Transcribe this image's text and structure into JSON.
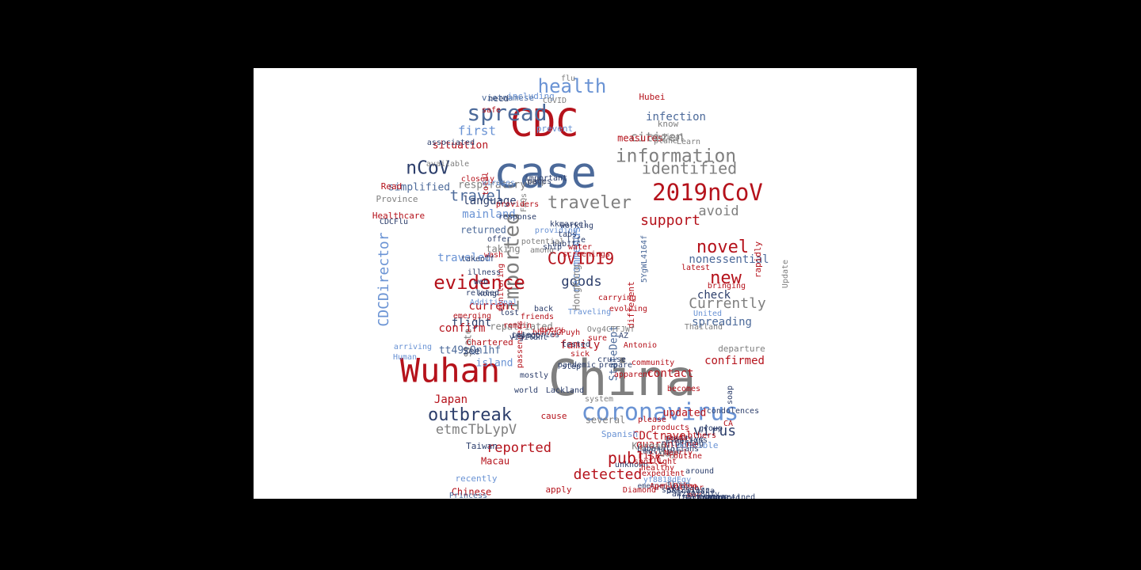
{
  "palette": {
    "red": "#b5121b",
    "gray": "#7f7f7f",
    "navy": "#2c3e6b",
    "slate": "#4c6a9a",
    "sky": "#6a93d4"
  },
  "words": [
    {
      "t": "China",
      "c": "gray"
    },
    {
      "t": "case",
      "c": "slate"
    },
    {
      "t": "CDC",
      "c": "red"
    },
    {
      "t": "Wuhan",
      "c": "red"
    },
    {
      "t": "coronavirus",
      "c": "sky"
    },
    {
      "t": "2019nCoV",
      "c": "red"
    },
    {
      "t": "spread",
      "c": "slate"
    },
    {
      "t": "health",
      "c": "sky"
    },
    {
      "t": "information",
      "c": "gray"
    },
    {
      "t": "nCoV",
      "c": "navy"
    },
    {
      "t": "outbreak",
      "c": "navy"
    },
    {
      "t": "traveler",
      "c": "gray"
    },
    {
      "t": "identified",
      "c": "gray"
    },
    {
      "t": "imported",
      "c": "gray"
    },
    {
      "t": "evidence",
      "c": "red"
    },
    {
      "t": "new",
      "c": "red"
    },
    {
      "t": "novel",
      "c": "red"
    },
    {
      "t": "travel",
      "c": "slate"
    },
    {
      "t": "public",
      "c": "red"
    },
    {
      "t": "detected",
      "c": "red"
    },
    {
      "t": "Currently",
      "c": "gray"
    },
    {
      "t": "support",
      "c": "red"
    },
    {
      "t": "virus",
      "c": "navy"
    },
    {
      "t": "COVID19",
      "c": "red"
    },
    {
      "t": "goods",
      "c": "navy"
    },
    {
      "t": "first",
      "c": "sky"
    },
    {
      "t": "CDCDirector",
      "c": "sky"
    },
    {
      "t": "etmcTbLypV",
      "c": "gray"
    },
    {
      "t": "reported",
      "c": "red"
    },
    {
      "t": "avoid",
      "c": "gray"
    },
    {
      "t": "nonessential",
      "c": "slate"
    },
    {
      "t": "recommends",
      "c": "sky"
    },
    {
      "t": "flight",
      "c": "navy"
    },
    {
      "t": "respiratory",
      "c": "gray"
    },
    {
      "t": "citizen",
      "c": "gray"
    },
    {
      "t": "language",
      "c": "navy"
    },
    {
      "t": "mainland",
      "c": "sky"
    },
    {
      "t": "traveled",
      "c": "sky"
    },
    {
      "t": "current",
      "c": "red"
    },
    {
      "t": "confirm",
      "c": "red"
    },
    {
      "t": "spreading",
      "c": "slate"
    },
    {
      "t": "confirmed",
      "c": "red"
    },
    {
      "t": "family",
      "c": "red"
    },
    {
      "t": "check",
      "c": "navy"
    },
    {
      "t": "CDCtravel",
      "c": "red"
    },
    {
      "t": "HongKong",
      "c": "gray"
    },
    {
      "t": "StateDept",
      "c": "slate"
    },
    {
      "t": "contact",
      "c": "red"
    },
    {
      "t": "quarantine",
      "c": "red"
    },
    {
      "t": "updated",
      "c": "red"
    },
    {
      "t": "measures",
      "c": "red"
    },
    {
      "t": "situation",
      "c": "red"
    },
    {
      "t": "simplified",
      "c": "slate"
    },
    {
      "t": "infection",
      "c": "slate"
    },
    {
      "t": "Japan",
      "c": "red"
    },
    {
      "t": "island",
      "c": "sky"
    },
    {
      "t": "tt49zQn1hf",
      "c": "slate"
    },
    {
      "t": "State",
      "c": "gray"
    },
    {
      "t": "returned",
      "c": "slate"
    },
    {
      "t": "taking",
      "c": "gray"
    },
    {
      "t": "repatriated",
      "c": "gray"
    },
    {
      "t": "See",
      "c": "navy"
    },
    {
      "t": "Korean",
      "c": "gray"
    },
    {
      "t": "risk",
      "c": "red"
    },
    {
      "t": "Macau",
      "c": "red"
    },
    {
      "t": "Taiwan",
      "c": "navy"
    },
    {
      "t": "Chinese",
      "c": "red"
    },
    {
      "t": "recently",
      "c": "sky"
    },
    {
      "t": "several",
      "c": "gray"
    },
    {
      "t": "Spanish",
      "c": "sky"
    },
    {
      "t": "day",
      "c": "gray"
    },
    {
      "t": "apply",
      "c": "red"
    },
    {
      "t": "cause",
      "c": "red"
    },
    {
      "t": "possible",
      "c": "sky"
    },
    {
      "t": "different",
      "c": "red"
    },
    {
      "t": "5YgWL4164f",
      "c": "slate"
    },
    {
      "t": "back",
      "c": "navy"
    },
    {
      "t": "safe",
      "c": "red"
    },
    {
      "t": "need",
      "c": "navy"
    },
    {
      "t": "vietnamese",
      "c": "slate"
    },
    {
      "t": "including",
      "c": "sky"
    },
    {
      "t": "Hubei",
      "c": "red"
    },
    {
      "t": "flu",
      "c": "gray"
    },
    {
      "t": "COVID",
      "c": "gray"
    },
    {
      "t": "prevent",
      "c": "sky"
    },
    {
      "t": "Learn",
      "c": "gray"
    },
    {
      "t": "plane",
      "c": "gray"
    },
    {
      "t": "medical",
      "c": "gray"
    },
    {
      "t": "know",
      "c": "gray"
    },
    {
      "t": "help",
      "c": "gray"
    },
    {
      "t": "closely",
      "c": "red"
    },
    {
      "t": "Province",
      "c": "gray"
    },
    {
      "t": "Healthcare",
      "c": "red"
    },
    {
      "t": "CDCFlu",
      "c": "navy"
    },
    {
      "t": "Read",
      "c": "red"
    },
    {
      "t": "total",
      "c": "red"
    },
    {
      "t": "FAQs",
      "c": "gray"
    },
    {
      "t": "bringing",
      "c": "red"
    },
    {
      "t": "latest",
      "c": "red"
    },
    {
      "t": "rapidly",
      "c": "red"
    },
    {
      "t": "Update",
      "c": "gray"
    },
    {
      "t": "United",
      "c": "sky"
    },
    {
      "t": "Thailand",
      "c": "gray"
    },
    {
      "t": "friends",
      "c": "red"
    },
    {
      "t": "departure",
      "c": "gray"
    },
    {
      "t": "step",
      "c": "navy"
    },
    {
      "t": "Lackland",
      "c": "navy"
    },
    {
      "t": "system",
      "c": "gray"
    },
    {
      "t": "Laboratorians",
      "c": "navy"
    },
    {
      "t": "Diamond",
      "c": "red"
    },
    {
      "t": "Princess",
      "c": "slate"
    },
    {
      "t": "arriving",
      "c": "sky"
    },
    {
      "t": "Human",
      "c": "sky"
    },
    {
      "t": "Chartered",
      "c": "red"
    },
    {
      "t": "passengers",
      "c": "red"
    },
    {
      "t": "monitoring",
      "c": "red"
    },
    {
      "t": "Additional",
      "c": "sky"
    },
    {
      "t": "emerging",
      "c": "red"
    },
    {
      "t": "evolving",
      "c": "red"
    },
    {
      "t": "bbH7gGPuyh",
      "c": "red"
    },
    {
      "t": "Ovg4CTFJWf",
      "c": "gray"
    },
    {
      "t": "AZ",
      "c": "navy"
    },
    {
      "t": "tested",
      "c": "navy"
    },
    {
      "t": "sick",
      "c": "red"
    },
    {
      "t": "pandemic",
      "c": "navy"
    },
    {
      "t": "mostly",
      "c": "navy"
    },
    {
      "t": "world",
      "c": "navy"
    },
    {
      "t": "positive",
      "c": "navy"
    },
    {
      "t": "options",
      "c": "navy"
    },
    {
      "t": "routine",
      "c": "red"
    },
    {
      "t": "multiple",
      "c": "navy"
    },
    {
      "t": "unknown",
      "c": "navy"
    },
    {
      "t": "flown",
      "c": "navy"
    },
    {
      "t": "emergence",
      "c": "navy"
    },
    {
      "t": "becomes",
      "c": "red"
    },
    {
      "t": "others",
      "c": "red"
    },
    {
      "t": "may",
      "c": "red"
    },
    {
      "t": "Nearly",
      "c": "red"
    },
    {
      "t": "group",
      "c": "navy"
    },
    {
      "t": "CA",
      "c": "red"
    },
    {
      "t": "soap",
      "c": "navy"
    },
    {
      "t": "condolences",
      "c": "navy"
    },
    {
      "t": "associated",
      "c": "navy"
    },
    {
      "t": "available",
      "c": "gray"
    },
    {
      "t": "pages",
      "c": "navy"
    },
    {
      "t": "viruses",
      "c": "sky"
    },
    {
      "t": "providers",
      "c": "red"
    },
    {
      "t": "response",
      "c": "navy"
    },
    {
      "t": "important",
      "c": "navy"
    },
    {
      "t": "kkmarcel",
      "c": "navy"
    },
    {
      "t": "working",
      "c": "navy"
    },
    {
      "t": "providing",
      "c": "sky"
    },
    {
      "t": "tabs",
      "c": "navy"
    },
    {
      "t": "life",
      "c": "navy"
    },
    {
      "t": "habits",
      "c": "navy"
    },
    {
      "t": "water",
      "c": "red"
    },
    {
      "t": "screenings",
      "c": "red"
    },
    {
      "t": "potential",
      "c": "gray"
    },
    {
      "t": "among",
      "c": "gray"
    },
    {
      "t": "ship",
      "c": "navy"
    },
    {
      "t": "offer",
      "c": "navy"
    },
    {
      "t": "wash",
      "c": "red"
    },
    {
      "t": "takeoff",
      "c": "navy"
    },
    {
      "t": "illness",
      "c": "navy"
    },
    {
      "t": "web",
      "c": "navy"
    },
    {
      "t": "related",
      "c": "navy"
    },
    {
      "t": "kong",
      "c": "navy"
    },
    {
      "t": "lost",
      "c": "navy"
    },
    {
      "t": "remain",
      "c": "red"
    },
    {
      "t": "impact",
      "c": "navy"
    },
    {
      "t": "vigilant",
      "c": "navy"
    },
    {
      "t": "categories",
      "c": "navy"
    },
    {
      "t": "every",
      "c": "red"
    },
    {
      "t": "carrying",
      "c": "red"
    },
    {
      "t": "Traveling",
      "c": "sky"
    },
    {
      "t": "sure",
      "c": "red"
    },
    {
      "t": "Antonio",
      "c": "red"
    },
    {
      "t": "cruise",
      "c": "navy"
    },
    {
      "t": "prepare",
      "c": "navy"
    },
    {
      "t": "community",
      "c": "red"
    },
    {
      "t": "apparent",
      "c": "red"
    },
    {
      "t": "please",
      "c": "red"
    },
    {
      "t": "products",
      "c": "red"
    },
    {
      "t": "hands",
      "c": "red"
    },
    {
      "t": "returning",
      "c": "navy"
    },
    {
      "t": "around",
      "c": "navy"
    },
    {
      "t": "spotlight",
      "c": "red"
    },
    {
      "t": "healthy",
      "c": "red"
    },
    {
      "t": "expedient",
      "c": "red"
    },
    {
      "t": "yf8818dEgy",
      "c": "sky"
    },
    {
      "t": "AprilDilao",
      "c": "red"
    },
    {
      "t": "rfoV1C73hr",
      "c": "red"
    },
    {
      "t": "spX4Z319xr",
      "c": "navy"
    },
    {
      "t": "5RlnWjoJza",
      "c": "navy"
    },
    {
      "t": "aWzYQz8dTv",
      "c": "navy"
    },
    {
      "t": "lE4vZY2U06",
      "c": "navy"
    },
    {
      "t": "Fg1owMXg0",
      "c": "navy"
    },
    {
      "t": "monitored",
      "c": "navy"
    },
    {
      "t": "quarantined",
      "c": "navy"
    },
    {
      "t": "diagnosis",
      "c": "navy"
    },
    {
      "t": "locations",
      "c": "red"
    },
    {
      "t": "packages",
      "c": "sky"
    },
    {
      "t": "efforts",
      "c": "red"
    },
    {
      "t": "airports",
      "c": "sky"
    },
    {
      "t": "following",
      "c": "sky"
    },
    {
      "t": "thousand",
      "c": "red"
    },
    {
      "t": "Joint",
      "c": "red"
    },
    {
      "t": "screened",
      "c": "navy"
    },
    {
      "t": "website",
      "c": "navy"
    },
    {
      "t": "continue",
      "c": "red"
    },
    {
      "t": "drive",
      "c": "navy"
    },
    {
      "t": "ongoing",
      "c": "red"
    },
    {
      "t": "everyday",
      "c": "red"
    },
    {
      "t": "via",
      "c": "navy"
    },
    {
      "t": "gives",
      "c": "navy"
    },
    {
      "t": "completed",
      "c": "navy"
    },
    {
      "t": "respond",
      "c": "navy"
    },
    {
      "t": "newcoronavirus",
      "c": "navy"
    },
    {
      "t": "via",
      "c": "navy"
    },
    {
      "t": "domestic",
      "c": "red"
    },
    {
      "t": "evaluated",
      "c": "red"
    },
    {
      "t": "often",
      "c": "navy"
    },
    {
      "t": "Hong",
      "c": "gray"
    },
    {
      "t": "web",
      "c": "navy"
    },
    {
      "t": "resulted",
      "c": "gray"
    }
  ]
}
